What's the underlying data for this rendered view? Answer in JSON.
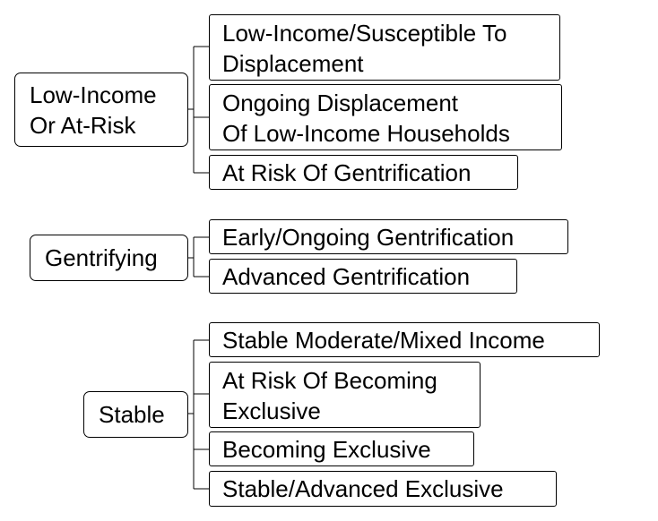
{
  "groups": [
    {
      "label": "Low-Income\nOr At-Risk",
      "children": [
        "Low-Income/Susceptible To\nDisplacement",
        "Ongoing Displacement\nOf Low-Income Households",
        "At Risk Of Gentrification"
      ]
    },
    {
      "label": "Gentrifying",
      "children": [
        "Early/Ongoing Gentrification",
        "Advanced Gentrification"
      ]
    },
    {
      "label": "Stable",
      "children": [
        "Stable Moderate/Mixed Income",
        "At Risk Of Becoming\nExclusive",
        "Becoming Exclusive",
        "Stable/Advanced Exclusive"
      ]
    }
  ],
  "colors": {
    "border": "#000000",
    "background": "#ffffff",
    "text": "#000000"
  }
}
